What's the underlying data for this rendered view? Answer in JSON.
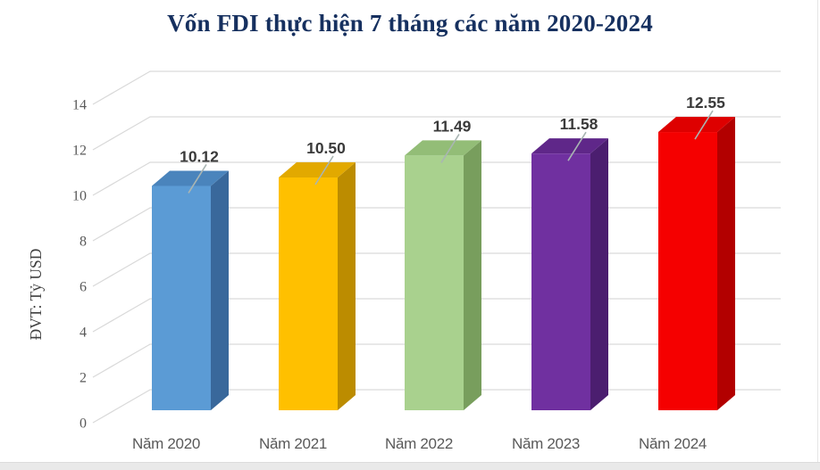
{
  "chart_data": {
    "type": "bar",
    "projection": "3d",
    "title": "Vốn FDI thực hiện 7 tháng các năm 2020-2024",
    "ylabel": "ĐVT: Tỷ USD",
    "xlabel": "",
    "categories": [
      "Năm 2020",
      "Năm 2021",
      "Năm 2022",
      "Năm 2023",
      "Năm 2024"
    ],
    "values": [
      10.12,
      10.5,
      11.49,
      11.58,
      12.55
    ],
    "value_labels": [
      "10.12",
      "10.50",
      "11.49",
      "11.58",
      "12.55"
    ],
    "yticks": [
      0,
      2,
      4,
      6,
      8,
      10,
      12,
      14
    ],
    "ylim": [
      0,
      14
    ],
    "grid": true,
    "legend": "none",
    "series_colors": [
      {
        "name": "Năm 2020",
        "front": "#5B9BD5",
        "top": "#4A84BC",
        "side": "#39689B"
      },
      {
        "name": "Năm 2021",
        "front": "#FFC000",
        "top": "#E2A900",
        "side": "#BC8C00"
      },
      {
        "name": "Năm 2022",
        "front": "#A9D18E",
        "top": "#93BD77",
        "side": "#789E5D"
      },
      {
        "name": "Năm 2023",
        "front": "#7030A0",
        "top": "#5F2789",
        "side": "#4B1E6F"
      },
      {
        "name": "Năm 2024",
        "front": "#F50000",
        "top": "#DE0000",
        "side": "#B20000"
      }
    ],
    "text_colors": {
      "title": "#16305F",
      "ticks": "#595959",
      "categories": "#595959",
      "data_labels": "#3A3A3A"
    },
    "grid_color": "#D9D9D9",
    "leader_line_color": "#A9B5B3"
  }
}
